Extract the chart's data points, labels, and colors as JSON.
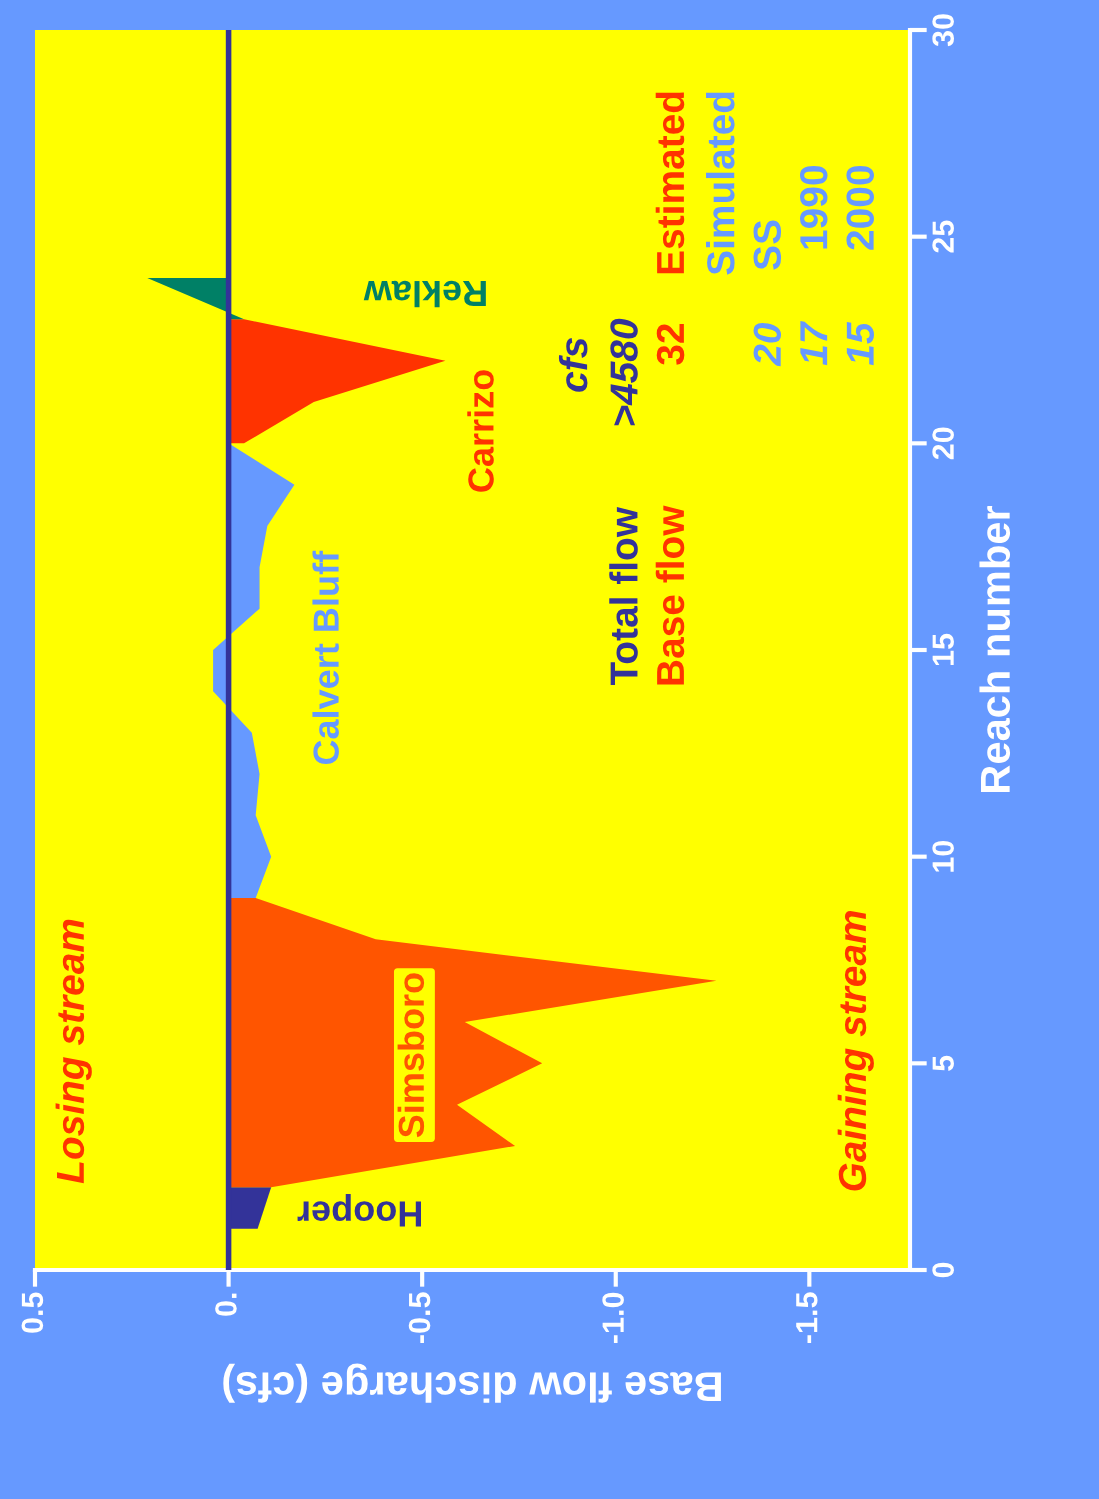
{
  "chart_data": {
    "type": "area",
    "orientation": "horizontal",
    "xlabel": "Base flow discharge (cfs)",
    "ylabel": "Reach number",
    "xlim": [
      0.5,
      -1.76
    ],
    "xticks": [
      0.5,
      {
        "value": 0,
        "label": "0."
      },
      -0.5,
      {
        "value": -1.0,
        "label": "-1.0"
      },
      -1.5
    ],
    "ylim": [
      0,
      30
    ],
    "yticks": [
      0,
      5,
      10,
      15,
      20,
      25,
      30
    ],
    "series": [
      {
        "name": "Hooper",
        "color": "#333399",
        "x": [
          1,
          2
        ],
        "values": [
          -0.075,
          -0.11
        ]
      },
      {
        "name": "Simsboro",
        "color": "#ff5500",
        "x": [
          2,
          3,
          4,
          5,
          6,
          7,
          8,
          9
        ],
        "values": [
          -0.11,
          -0.74,
          -0.59,
          -0.81,
          -0.61,
          -1.26,
          -0.38,
          -0.07
        ]
      },
      {
        "name": "Calvert Bluff",
        "color": "#6699ff",
        "x": [
          9,
          10,
          11,
          12,
          13,
          14,
          15,
          16,
          17,
          18,
          19,
          20
        ],
        "values": [
          -0.07,
          -0.11,
          -0.07,
          -0.08,
          -0.06,
          0.04,
          0.04,
          -0.08,
          -0.08,
          -0.1,
          -0.17,
          0
        ]
      },
      {
        "name": "Carrizo",
        "color": "#ff3300",
        "x": [
          20,
          21,
          22,
          23
        ],
        "values": [
          -0.04,
          -0.22,
          -0.56,
          -0.04
        ]
      },
      {
        "name": "Reklaw",
        "color": "#008066",
        "x": [
          23,
          24
        ],
        "values": [
          -0.04,
          0.21
        ]
      }
    ],
    "ref_lines": [
      {
        "axis": "x",
        "value": 0,
        "color": "#333399"
      }
    ],
    "annotations": [
      "Losing stream",
      "Gaining stream",
      "cfs",
      "Total flow",
      ">4580",
      "Base flow",
      "32",
      "Estimated",
      "Simulated",
      "20",
      "SS",
      "17",
      "1990",
      "15",
      "2000"
    ]
  }
}
